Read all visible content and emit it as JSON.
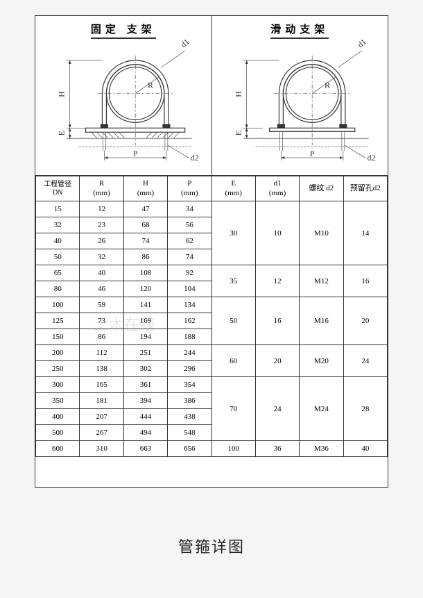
{
  "diagrams": {
    "left_title": "固定 支架",
    "right_title": "滑动支架",
    "labels": {
      "H": "H",
      "E": "E",
      "P": "P",
      "R": "R",
      "d1": "d1",
      "d2": "d2"
    },
    "stroke": "#333333",
    "thin_stroke": "#555555",
    "fill": "#ffffff",
    "dash": "3,2",
    "line_width_main": 1.2,
    "line_width_thin": 0.6,
    "include_base_plate": {
      "left": true,
      "right": false
    }
  },
  "table": {
    "headers": {
      "dn": "工程管径\nDN",
      "R": "R\n(mm)",
      "H": "H\n(mm)",
      "P": "P\n(mm)",
      "E": "E\n(mm)",
      "d1": "d1\n(mm)",
      "thread": "螺纹 d2",
      "hole": "预留孔d2"
    },
    "groups": [
      {
        "E": "30",
        "d1": "10",
        "thread": "M10",
        "hole": "14",
        "rows": [
          {
            "dn": "15",
            "R": "12",
            "H": "47",
            "P": "34"
          },
          {
            "dn": "32",
            "R": "23",
            "H": "68",
            "P": "56"
          },
          {
            "dn": "40",
            "R": "26",
            "H": "74",
            "P": "62"
          },
          {
            "dn": "50",
            "R": "32",
            "H": "86",
            "P": "74"
          }
        ]
      },
      {
        "E": "35",
        "d1": "12",
        "thread": "M12",
        "hole": "16",
        "rows": [
          {
            "dn": "65",
            "R": "40",
            "H": "108",
            "P": "92"
          },
          {
            "dn": "80",
            "R": "46",
            "H": "120",
            "P": "104"
          }
        ]
      },
      {
        "E": "50",
        "d1": "16",
        "thread": "M16",
        "hole": "20",
        "rows": [
          {
            "dn": "100",
            "R": "59",
            "H": "141",
            "P": "134"
          },
          {
            "dn": "125",
            "R": "73",
            "H": "169",
            "P": "162"
          },
          {
            "dn": "150",
            "R": "86",
            "H": "194",
            "P": "188"
          }
        ]
      },
      {
        "E": "60",
        "d1": "20",
        "thread": "M20",
        "hole": "24",
        "rows": [
          {
            "dn": "200",
            "R": "112",
            "H": "251",
            "P": "244"
          },
          {
            "dn": "250",
            "R": "138",
            "H": "302",
            "P": "296"
          }
        ]
      },
      {
        "E": "70",
        "d1": "24",
        "thread": "M24",
        "hole": "28",
        "rows": [
          {
            "dn": "300",
            "R": "165",
            "H": "361",
            "P": "354"
          },
          {
            "dn": "350",
            "R": "181",
            "H": "394",
            "P": "386"
          },
          {
            "dn": "400",
            "R": "207",
            "H": "444",
            "P": "438"
          },
          {
            "dn": "500",
            "R": "267",
            "H": "494",
            "P": "548"
          }
        ]
      },
      {
        "E": "100",
        "d1": "36",
        "thread": "M36",
        "hole": "40",
        "rows": [
          {
            "dn": "600",
            "R": "310",
            "H": "663",
            "P": "656"
          }
        ]
      }
    ],
    "col_widths_pct": [
      12.5,
      12.5,
      12.5,
      12.5,
      12.5,
      12.5,
      12.5,
      12.5
    ]
  },
  "caption": "管箍详图",
  "watermark": "土木在线"
}
